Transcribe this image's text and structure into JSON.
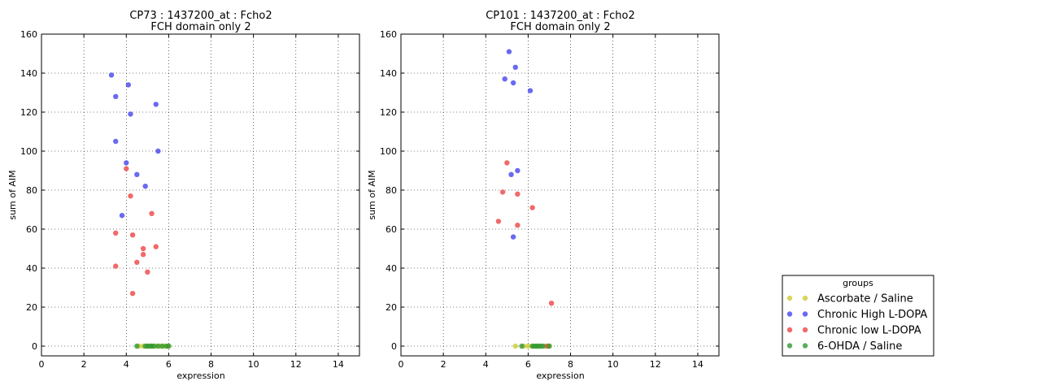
{
  "chart_data": [
    {
      "type": "scatter",
      "title": "CP73 : 1437200_at : Fcho2",
      "subtitle": "FCH domain only 2",
      "xlabel": "expression",
      "ylabel": "sum of AIM",
      "xlim": [
        0,
        15
      ],
      "ylim": [
        -5,
        160
      ],
      "xticks": [
        0,
        2,
        4,
        6,
        8,
        10,
        12,
        14
      ],
      "yticks": [
        0,
        20,
        40,
        60,
        80,
        100,
        120,
        140,
        160
      ],
      "grid": true,
      "series": [
        {
          "name": "Ascorbate / Saline",
          "color": "#cccc33",
          "x": [
            4.6,
            4.8,
            5.0,
            5.2,
            5.4,
            5.6,
            5.8,
            6.0
          ],
          "y": [
            0,
            0,
            0,
            0,
            0,
            0,
            0,
            0
          ]
        },
        {
          "name": "Chronic High L-DOPA",
          "color": "#4444ee",
          "x": [
            3.3,
            4.1,
            3.5,
            5.4,
            4.2,
            3.5,
            5.5,
            4.0,
            4.5,
            4.9,
            3.8
          ],
          "y": [
            139,
            134,
            128,
            124,
            119,
            105,
            100,
            94,
            88,
            82,
            67
          ]
        },
        {
          "name": "Chronic low L-DOPA",
          "color": "#ee4444",
          "x": [
            4.0,
            4.2,
            5.2,
            3.5,
            4.3,
            4.8,
            5.4,
            4.8,
            4.5,
            3.5,
            5.0,
            4.3
          ],
          "y": [
            91,
            77,
            68,
            58,
            57,
            50,
            51,
            47,
            43,
            41,
            38,
            27
          ]
        },
        {
          "name": "6-OHDA / Saline",
          "color": "#339933",
          "x": [
            4.5,
            4.9,
            5.0,
            5.1,
            5.2,
            5.3,
            5.5,
            5.7,
            5.9,
            6.0
          ],
          "y": [
            0,
            0,
            0,
            0,
            0,
            0,
            0,
            0,
            0,
            0
          ]
        }
      ]
    },
    {
      "type": "scatter",
      "title": "CP101 : 1437200_at : Fcho2",
      "subtitle": "FCH domain only 2",
      "xlabel": "expression",
      "ylabel": "sum of AIM",
      "xlim": [
        0,
        15
      ],
      "ylim": [
        -5,
        160
      ],
      "xticks": [
        0,
        2,
        4,
        6,
        8,
        10,
        12,
        14
      ],
      "yticks": [
        0,
        20,
        40,
        60,
        80,
        100,
        120,
        140,
        160
      ],
      "grid": true,
      "series": [
        {
          "name": "Ascorbate / Saline",
          "color": "#cccc33",
          "x": [
            5.4,
            5.8,
            6.0,
            6.2,
            6.4,
            6.8,
            7.0
          ],
          "y": [
            0,
            0,
            0,
            0,
            0,
            0,
            0
          ]
        },
        {
          "name": "Chronic High L-DOPA",
          "color": "#4444ee",
          "x": [
            5.1,
            5.4,
            4.9,
            5.3,
            6.1,
            5.5,
            5.2,
            5.3
          ],
          "y": [
            151,
            143,
            137,
            135,
            131,
            90,
            88,
            56
          ]
        },
        {
          "name": "Chronic low L-DOPA",
          "color": "#ee4444",
          "x": [
            5.0,
            4.8,
            5.5,
            6.2,
            4.6,
            5.5,
            7.1,
            6.9
          ],
          "y": [
            94,
            79,
            78,
            71,
            64,
            62,
            22,
            0
          ]
        },
        {
          "name": "6-OHDA / Saline",
          "color": "#339933",
          "x": [
            5.7,
            6.2,
            6.3,
            6.4,
            6.5,
            6.6,
            6.7,
            7.0
          ],
          "y": [
            0,
            0,
            0,
            0,
            0,
            0,
            0,
            0
          ]
        }
      ]
    }
  ],
  "legend": {
    "title": "groups",
    "placement": "bottom-right",
    "entries": [
      {
        "label": "Ascorbate / Saline",
        "color": "#cccc33"
      },
      {
        "label": "Chronic High L-DOPA",
        "color": "#4444ee"
      },
      {
        "label": "Chronic low L-DOPA",
        "color": "#ee4444"
      },
      {
        "label": "6-OHDA / Saline",
        "color": "#339933"
      }
    ]
  }
}
